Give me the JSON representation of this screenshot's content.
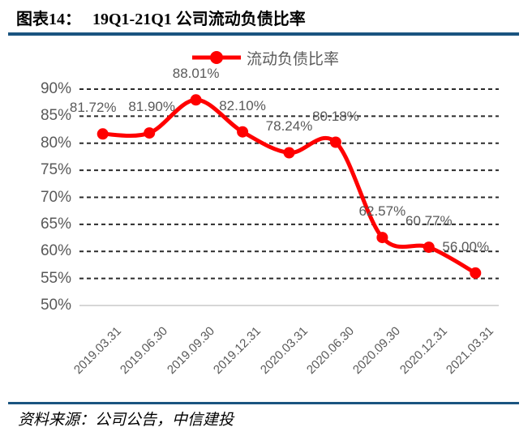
{
  "header": {
    "figure_label": "图表14：",
    "title": "19Q1-21Q1 公司流动负债比率"
  },
  "legend": {
    "series_label": "流动负债比率"
  },
  "footer": {
    "source_text": "资料来源：公司公告，中信建投"
  },
  "colors": {
    "rule_navy": "#1A5480",
    "series_red": "#FF0000",
    "label_gray": "#595959",
    "gridline": "#2B2B2B",
    "axis_line": "#C8C8C8"
  },
  "chart_data": {
    "type": "line",
    "title": "19Q1-21Q1 公司流动负债比率",
    "series": [
      {
        "name": "流动负债比率",
        "values": [
          81.72,
          81.9,
          88.01,
          82.1,
          78.24,
          80.18,
          62.57,
          60.77,
          56.0
        ],
        "data_labels": [
          "81.72%",
          "81.90%",
          "88.01%",
          "82.10%",
          "78.24%",
          "80.18%",
          "62.57%",
          "60.77%",
          "56.00%"
        ],
        "color": "#FF0000",
        "marker": "circle",
        "smooth": true
      }
    ],
    "categories": [
      "2019.03.31",
      "2019.06.30",
      "2019.09.30",
      "2019.12.31",
      "2020.03.31",
      "2020.06.30",
      "2020.09.30",
      "2020.12.31",
      "2021.03.31"
    ],
    "xlabel": "",
    "ylabel": "",
    "ylim": [
      50,
      90
    ],
    "ytick_step": 5,
    "ytick_labels": [
      "50%",
      "55%",
      "60%",
      "65%",
      "70%",
      "75%",
      "80%",
      "85%",
      "90%"
    ],
    "grid": "horizontal-dashed",
    "legend_position": "top-center"
  }
}
